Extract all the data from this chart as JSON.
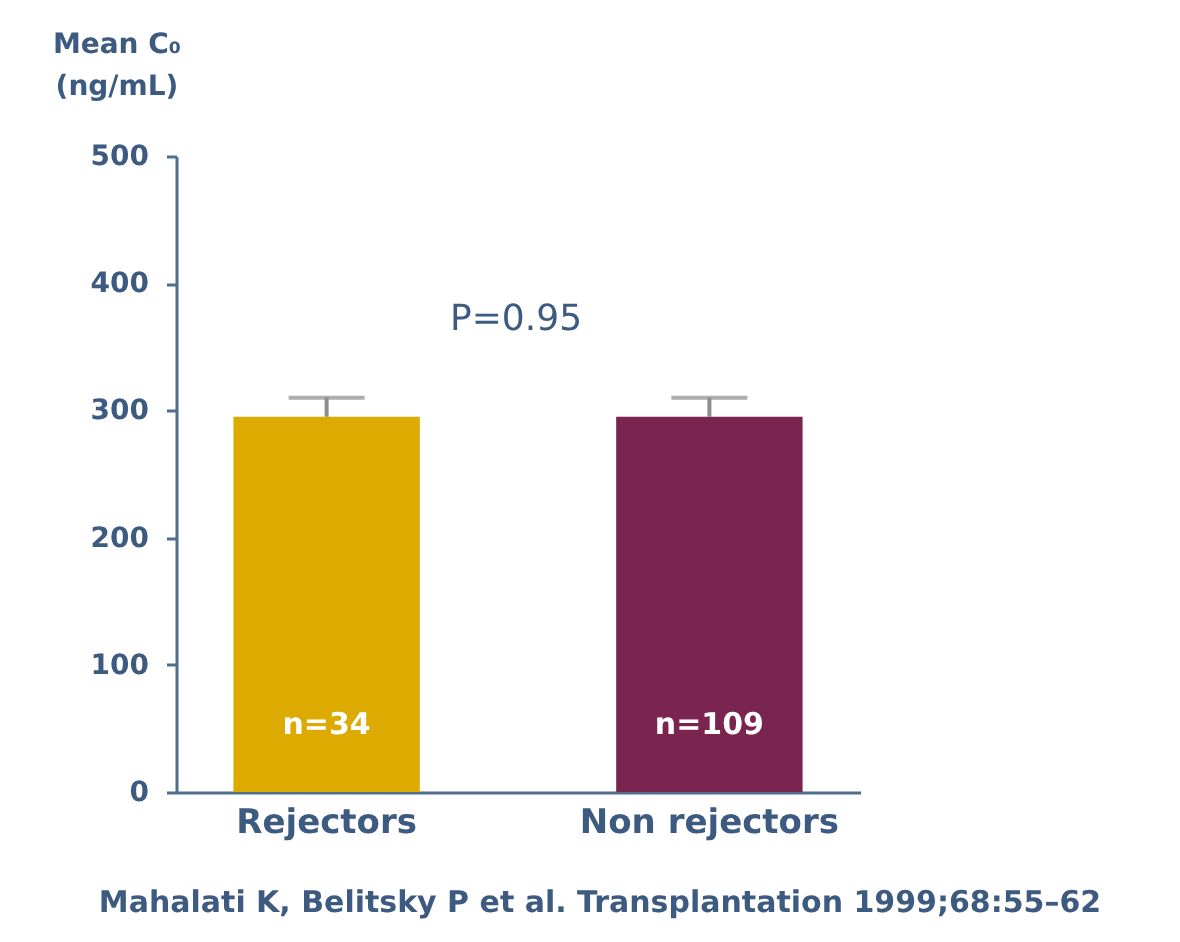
{
  "chart_data": {
    "type": "bar",
    "categories": [
      "Rejectors",
      "Non rejectors"
    ],
    "values": [
      295,
      295
    ],
    "errors": [
      15,
      15
    ],
    "colors": [
      "#dcaa00",
      "#7a2550"
    ],
    "ylabel": "Mean C₀ (ng/mL)",
    "ylim": [
      0,
      500
    ],
    "yticks": [
      0,
      100,
      200,
      300,
      400,
      500
    ],
    "annotations": [
      "P=0.95",
      "n=34",
      "n=109",
      "Mahalati K, Belitsky P et al. Transplantation 1999;68:55–62"
    ]
  }
}
